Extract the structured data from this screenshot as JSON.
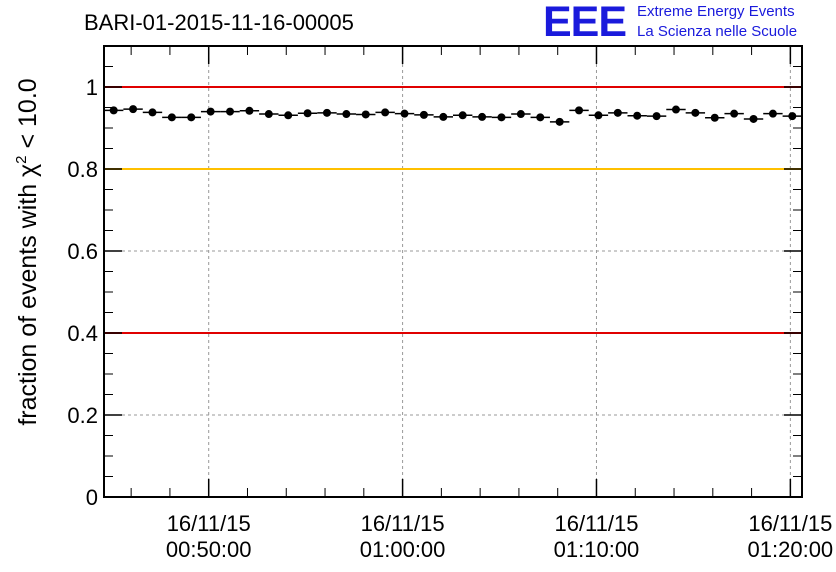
{
  "title": "BARI-01-2015-11-16-00005",
  "logo": {
    "mark": "EEE",
    "line1": "Extreme Energy Events",
    "line2": "La Scienza nelle Scuole",
    "color": "#1a1adc"
  },
  "chart_data": {
    "type": "scatter",
    "title": "BARI-01-2015-11-16-00005",
    "ylabel_prefix": "fraction of events with ",
    "ylabel_chi": "χ",
    "ylabel_sup": "2",
    "ylabel_suffix": " < 10.0",
    "xlabel": "",
    "ylim": [
      0,
      1.1
    ],
    "yticks": [
      "0",
      "0.2",
      "0.4",
      "0.6",
      "0.8",
      "1"
    ],
    "xticks": [
      {
        "date": "16/11/15",
        "time": "00:50:00",
        "minutes": 50
      },
      {
        "date": "16/11/15",
        "time": "01:00:00",
        "minutes": 60
      },
      {
        "date": "16/11/15",
        "time": "01:10:00",
        "minutes": 70
      },
      {
        "date": "16/11/15",
        "time": "01:20:00",
        "minutes": 80
      }
    ],
    "xlim_minutes": [
      44.6,
      80.6
    ],
    "bin_width_minutes": 1,
    "x_minutes": [
      45.1,
      46.1,
      47.1,
      48.1,
      49.1,
      50.1,
      51.1,
      52.1,
      53.1,
      54.1,
      55.1,
      56.1,
      57.1,
      58.1,
      59.1,
      60.1,
      61.1,
      62.1,
      63.1,
      64.1,
      65.1,
      66.1,
      67.1,
      68.1,
      69.1,
      70.1,
      71.1,
      72.1,
      73.1,
      74.1,
      75.1,
      76.1,
      77.1,
      78.1,
      79.1,
      80.1
    ],
    "y": [
      0.943,
      0.946,
      0.938,
      0.926,
      0.926,
      0.94,
      0.94,
      0.942,
      0.934,
      0.931,
      0.936,
      0.937,
      0.934,
      0.933,
      0.938,
      0.935,
      0.932,
      0.927,
      0.931,
      0.927,
      0.926,
      0.934,
      0.926,
      0.915,
      0.943,
      0.931,
      0.937,
      0.93,
      0.929,
      0.945,
      0.937,
      0.925,
      0.935,
      0.922,
      0.935,
      0.929
    ],
    "reference_lines": [
      {
        "y": 1.0,
        "color": "#e00000"
      },
      {
        "y": 0.8,
        "color": "#ffc000"
      },
      {
        "y": 0.4,
        "color": "#e00000"
      }
    ],
    "grid": true,
    "marker_color": "#000000"
  }
}
